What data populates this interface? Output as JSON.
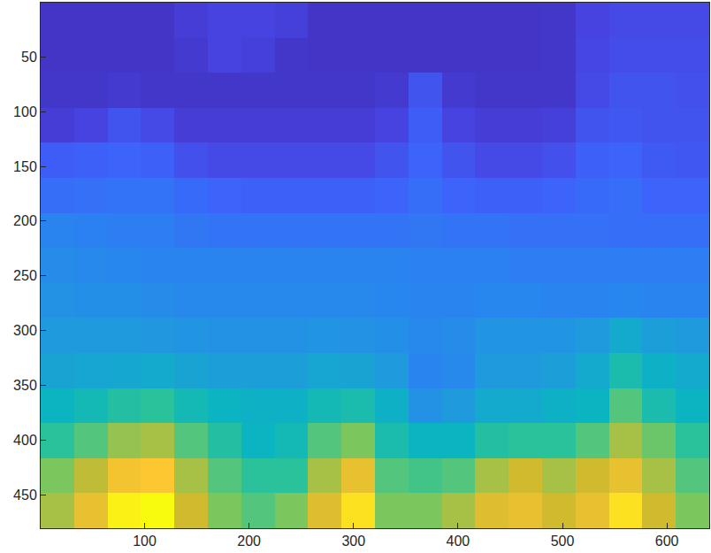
{
  "chart_data": {
    "type": "heatmap",
    "x": [
      16.5,
      48.5,
      80.5,
      112.5,
      144.5,
      176.5,
      208.5,
      240.5,
      272.5,
      304.5,
      336.5,
      368.5,
      400.5,
      432.5,
      464.5,
      496.5,
      528.5,
      560.5,
      592.5,
      624.5
    ],
    "y": [
      16.5,
      48.5,
      80.5,
      112.5,
      144.5,
      176.5,
      208.5,
      240.5,
      272.5,
      304.5,
      336.5,
      368.5,
      400.5,
      432.5,
      464.5
    ],
    "z": [
      [
        0.5,
        0.5,
        0.5,
        0.5,
        0.8,
        1.0,
        1.0,
        0.9,
        0.5,
        0.5,
        0.5,
        0.5,
        0.5,
        0.5,
        0.5,
        0.6,
        1.0,
        1.2,
        1.2,
        1.2
      ],
      [
        0.5,
        0.5,
        0.5,
        0.5,
        0.7,
        1.0,
        0.9,
        0.6,
        0.5,
        0.5,
        0.5,
        0.5,
        0.5,
        0.5,
        0.5,
        0.6,
        1.1,
        1.3,
        1.3,
        1.3
      ],
      [
        0.6,
        0.6,
        0.7,
        0.6,
        0.6,
        0.6,
        0.6,
        0.6,
        0.6,
        0.6,
        0.7,
        1.5,
        0.7,
        0.6,
        0.6,
        0.6,
        1.2,
        1.5,
        1.5,
        1.4
      ],
      [
        0.8,
        1.0,
        1.5,
        1.2,
        0.8,
        0.8,
        0.8,
        0.8,
        0.8,
        0.8,
        1.0,
        1.8,
        1.0,
        0.8,
        0.8,
        0.9,
        1.5,
        1.6,
        1.5,
        1.5
      ],
      [
        1.8,
        1.9,
        2.0,
        1.9,
        1.4,
        1.2,
        1.2,
        1.2,
        1.2,
        1.2,
        1.5,
        2.0,
        1.5,
        1.2,
        1.2,
        1.4,
        1.9,
        2.0,
        1.7,
        1.6
      ],
      [
        2.3,
        2.4,
        2.5,
        2.5,
        2.2,
        2.0,
        1.9,
        1.9,
        1.9,
        1.9,
        2.0,
        2.3,
        2.0,
        1.9,
        1.9,
        2.0,
        2.2,
        2.3,
        2.0,
        2.0
      ],
      [
        3.0,
        2.9,
        2.8,
        2.8,
        2.6,
        2.5,
        2.5,
        2.5,
        2.5,
        2.5,
        2.5,
        2.6,
        2.5,
        2.5,
        2.4,
        2.4,
        2.4,
        2.3,
        2.3,
        2.3
      ],
      [
        3.3,
        3.2,
        3.1,
        3.0,
        3.0,
        3.0,
        3.0,
        3.0,
        3.0,
        3.0,
        3.0,
        2.9,
        2.9,
        2.9,
        2.8,
        2.8,
        2.8,
        2.8,
        2.8,
        2.8
      ],
      [
        3.5,
        3.4,
        3.4,
        3.3,
        3.2,
        3.2,
        3.2,
        3.2,
        3.2,
        3.2,
        3.1,
        3.0,
        3.0,
        3.1,
        3.1,
        3.0,
        3.0,
        3.1,
        3.0,
        3.0
      ],
      [
        3.8,
        3.8,
        3.8,
        3.7,
        3.6,
        3.5,
        3.5,
        3.5,
        3.6,
        3.5,
        3.4,
        3.2,
        3.3,
        3.6,
        3.6,
        3.6,
        3.8,
        4.5,
        4.0,
        3.8
      ],
      [
        4.2,
        4.3,
        4.4,
        4.5,
        4.2,
        4.0,
        4.0,
        4.0,
        4.3,
        4.2,
        3.8,
        3.0,
        3.2,
        3.8,
        3.8,
        4.0,
        4.5,
        5.5,
        4.8,
        4.5
      ],
      [
        5.0,
        5.3,
        5.8,
        6.0,
        5.3,
        5.0,
        4.8,
        4.8,
        5.3,
        5.5,
        4.8,
        3.5,
        3.8,
        4.5,
        4.5,
        4.8,
        5.0,
        6.5,
        5.5,
        5.0
      ],
      [
        6.0,
        6.5,
        7.3,
        7.5,
        6.5,
        5.8,
        5.0,
        5.3,
        6.5,
        7.0,
        5.5,
        5.0,
        5.0,
        5.8,
        6.0,
        6.0,
        6.5,
        7.5,
        6.8,
        6.0
      ],
      [
        7.0,
        7.8,
        8.8,
        9.0,
        7.5,
        6.5,
        6.0,
        6.0,
        7.5,
        8.5,
        6.5,
        6.3,
        6.5,
        7.5,
        8.0,
        7.5,
        8.0,
        8.5,
        7.5,
        6.5
      ],
      [
        7.5,
        8.5,
        9.8,
        10.0,
        8.0,
        7.0,
        6.5,
        7.0,
        8.3,
        9.5,
        7.0,
        7.0,
        7.5,
        8.3,
        8.5,
        8.0,
        8.5,
        9.5,
        8.0,
        7.0
      ]
    ],
    "zlim": [
      0,
      10
    ],
    "xlim": [
      0.5,
      640.5
    ],
    "ylim": [
      480.5,
      0.5
    ],
    "xticks": [
      100,
      200,
      300,
      400,
      500,
      600
    ],
    "yticks": [
      50,
      100,
      150,
      200,
      250,
      300,
      350,
      400,
      450
    ]
  }
}
